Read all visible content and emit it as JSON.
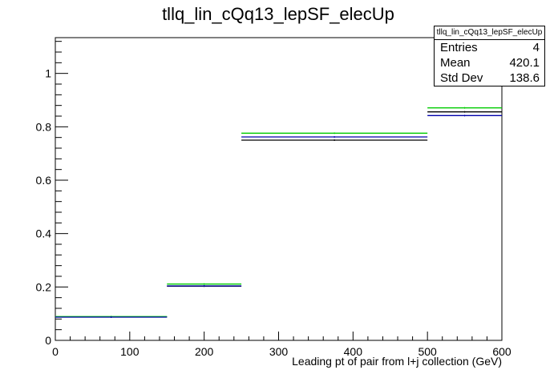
{
  "chart_data": {
    "type": "histogram",
    "title": "tllq_lin_cQq13_lepSF_elecUp",
    "xlabel": "Leading pt of pair from l+j collection (GeV)",
    "ylabel": "",
    "xlim": [
      0,
      600
    ],
    "ylim": [
      0,
      1.134
    ],
    "x_ticks": [
      0,
      100,
      200,
      300,
      400,
      500,
      600
    ],
    "y_ticks": [
      0,
      0.2,
      0.4,
      0.6,
      0.8,
      1
    ],
    "bin_edges": [
      0,
      150,
      250,
      500,
      600
    ],
    "series": [
      {
        "color": "#000000",
        "values": [
          0.088,
          0.203,
          0.75,
          0.856
        ]
      },
      {
        "color": "#00cc00",
        "values": [
          0.089,
          0.211,
          0.776,
          0.871
        ]
      },
      {
        "color": "#0000aa",
        "values": [
          0.087,
          0.204,
          0.762,
          0.842
        ]
      }
    ],
    "grid": false
  },
  "stats": {
    "title": "tllq_lin_cQq13_lepSF_elecUp",
    "rows": [
      {
        "label": "Entries",
        "value": "4"
      },
      {
        "label": "Mean",
        "value": "420.1"
      },
      {
        "label": "Std Dev",
        "value": "138.6"
      }
    ]
  }
}
